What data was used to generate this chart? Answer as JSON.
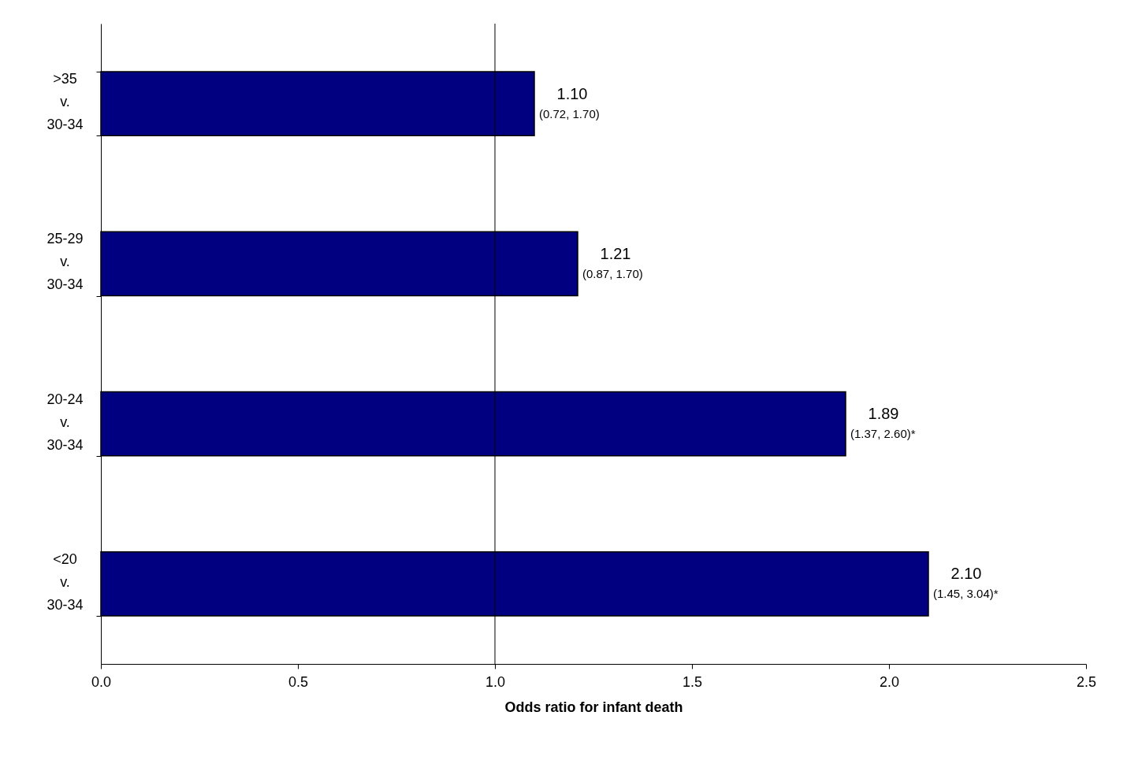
{
  "chart_data": {
    "type": "bar",
    "orientation": "horizontal",
    "xlabel": "Odds ratio for infant death",
    "categories": [
      ">35\nv.\n30-34",
      "25-29\nv.\n30-34",
      "20-24\nv.\n30-34",
      "<20\nv.\n30-34"
    ],
    "values": [
      1.1,
      1.21,
      1.89,
      2.1
    ],
    "color": "#000080",
    "value_labels": [
      "1.10",
      "1.21",
      "1.89",
      "2.10"
    ],
    "annotations": [
      {
        "text": "(0.72, 1.70)",
        "x": 1.1,
        "y": ">35\nv.\n30-34"
      },
      {
        "text": "(0.87, 1.70)",
        "x": 1.21,
        "y": "25-29\nv.\n30-34"
      },
      {
        "text": "(1.37, 2.60)*",
        "x": 1.89,
        "y": "20-24\nv.\n30-34"
      },
      {
        "text": "(1.45, 3.04)*",
        "x": 2.1,
        "y": "<20\nv.\n30-34"
      }
    ],
    "ref_lines": [
      {
        "axis": "x",
        "value": 1.0,
        "label": null,
        "color": "#000000"
      }
    ],
    "xlim": [
      0,
      2.5
    ],
    "xticks": [
      {
        "value": 0,
        "label": "0.0"
      },
      {
        "value": 0.5,
        "label": "0.5"
      },
      {
        "value": 1.0,
        "label": "1.0"
      },
      {
        "value": 1.5,
        "label": "1.5"
      },
      {
        "value": 2.0,
        "label": "2.0"
      },
      {
        "value": 2.5,
        "label": "2.5"
      }
    ],
    "grid": false
  }
}
